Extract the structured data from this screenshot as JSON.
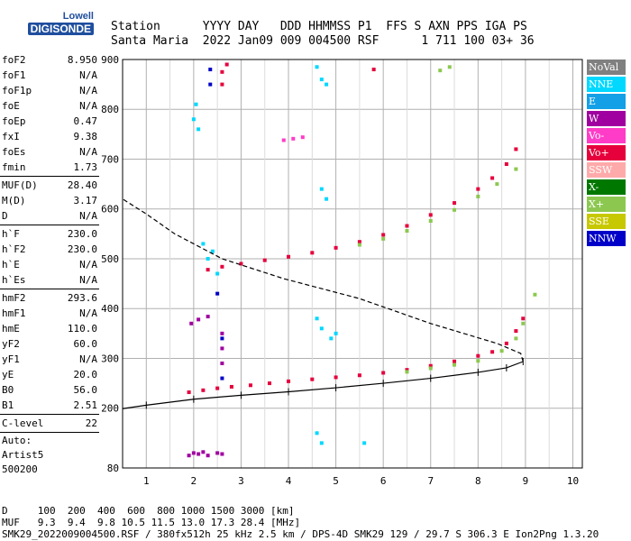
{
  "logo": {
    "line1": "Lowell",
    "line2": "DIGISONDE"
  },
  "header": {
    "line1": "Station      YYYY DAY   DDD HHMMSS P1  FFS S AXN PPS IGA PS",
    "line2": "Santa Maria  2022 Jan09 009 004500 RSF      1 711 100 03+ 36"
  },
  "params": [
    {
      "name": "foF2",
      "value": "8.950"
    },
    {
      "name": "foF1",
      "value": "N/A"
    },
    {
      "name": "foF1p",
      "value": "N/A"
    },
    {
      "name": "foE",
      "value": "N/A"
    },
    {
      "name": "foEp",
      "value": "0.47"
    },
    {
      "name": "fxI",
      "value": "9.38"
    },
    {
      "name": "foEs",
      "value": "N/A"
    },
    {
      "name": "fmin",
      "value": "1.73"
    },
    {
      "sep": true
    },
    {
      "name": "MUF(D)",
      "value": "28.40"
    },
    {
      "name": "M(D)",
      "value": "3.17"
    },
    {
      "name": "D",
      "value": "N/A"
    },
    {
      "sep": true
    },
    {
      "name": "h`F",
      "value": "230.0"
    },
    {
      "name": "h`F2",
      "value": "230.0"
    },
    {
      "name": "h`E",
      "value": "N/A"
    },
    {
      "name": "h`Es",
      "value": "N/A"
    },
    {
      "sep": true
    },
    {
      "name": "hmF2",
      "value": "293.6"
    },
    {
      "name": "hmF1",
      "value": "N/A"
    },
    {
      "name": "hmE",
      "value": "110.0"
    },
    {
      "name": "yF2",
      "value": "60.0"
    },
    {
      "name": "yF1",
      "value": "N/A"
    },
    {
      "name": "yE",
      "value": "20.0"
    },
    {
      "name": "B0",
      "value": "56.0"
    },
    {
      "name": "B1",
      "value": "2.51"
    },
    {
      "sep": true
    },
    {
      "name": "C-level",
      "value": "22"
    },
    {
      "sep": true
    }
  ],
  "auto_text": [
    "Auto:",
    "Artist5",
    "500200"
  ],
  "legend": [
    {
      "label": "NoVal",
      "color": "#808080"
    },
    {
      "label": "NNE",
      "color": "#00d8ff"
    },
    {
      "label": "E",
      "color": "#14a0e6"
    },
    {
      "label": "W",
      "color": "#a000a0"
    },
    {
      "label": "Vo-",
      "color": "#ff3cc8"
    },
    {
      "label": "Vo+",
      "color": "#e6003c"
    },
    {
      "label": "SSW",
      "color": "#ffaaaa"
    },
    {
      "label": "X-",
      "color": "#007800"
    },
    {
      "label": "X+",
      "color": "#8cc850"
    },
    {
      "label": "SSE",
      "color": "#c8c800"
    },
    {
      "label": "NNW",
      "color": "#0000c8"
    }
  ],
  "footer": {
    "line1": "D     100  200  400  600  800 1000 1500 3000 [km]",
    "line2": "MUF   9.3  9.4  9.8 10.5 11.5 13.0 17.3 28.4 [MHz]",
    "line3": "SMK29_2022009004500.RSF / 380fx512h 25 kHz 2.5 km / DPS-4D SMK29 129 / 29.7 S 306.3 E Ion2Png 1.3.20"
  },
  "chart_data": {
    "type": "scatter",
    "x_ticks": [
      "1",
      "2",
      "3",
      "4",
      "5",
      "6",
      "7",
      "8",
      "9",
      "10"
    ],
    "y_ticks": [
      "80",
      "200",
      "300",
      "400",
      "500",
      "600",
      "700",
      "800",
      "900"
    ],
    "xlim": [
      0.5,
      10.2
    ],
    "ylim": [
      80,
      900
    ],
    "grid": true,
    "series": [
      {
        "name": "Vo+",
        "color_key": "Vo+",
        "points": [
          [
            1.9,
            232
          ],
          [
            2.2,
            236
          ],
          [
            2.5,
            240
          ],
          [
            2.8,
            243
          ],
          [
            3.2,
            246
          ],
          [
            3.6,
            250
          ],
          [
            4.0,
            254
          ],
          [
            4.5,
            258
          ],
          [
            5.0,
            262
          ],
          [
            5.5,
            266
          ],
          [
            6.0,
            271
          ],
          [
            6.5,
            277
          ],
          [
            7.0,
            285
          ],
          [
            7.5,
            294
          ],
          [
            8.0,
            305
          ],
          [
            8.3,
            313
          ],
          [
            8.6,
            330
          ],
          [
            8.8,
            355
          ],
          [
            8.95,
            380
          ]
        ]
      },
      {
        "name": "X+",
        "color_key": "X+",
        "points": [
          [
            6.5,
            273
          ],
          [
            7.0,
            280
          ],
          [
            7.5,
            287
          ],
          [
            8.0,
            295
          ],
          [
            8.5,
            315
          ],
          [
            8.8,
            340
          ],
          [
            8.95,
            370
          ]
        ]
      },
      {
        "name": "Vo+",
        "color_key": "Vo+",
        "points": [
          [
            2.3,
            478
          ],
          [
            2.6,
            484
          ],
          [
            3.0,
            490
          ],
          [
            3.5,
            497
          ],
          [
            4.0,
            504
          ],
          [
            4.5,
            512
          ],
          [
            5.0,
            522
          ],
          [
            5.5,
            534
          ],
          [
            6.0,
            548
          ],
          [
            6.5,
            566
          ],
          [
            7.0,
            588
          ],
          [
            7.5,
            612
          ],
          [
            8.0,
            640
          ],
          [
            8.3,
            662
          ],
          [
            8.6,
            690
          ],
          [
            8.8,
            720
          ]
        ]
      },
      {
        "name": "X+",
        "color_key": "X+",
        "points": [
          [
            5.5,
            528
          ],
          [
            6.0,
            540
          ],
          [
            6.5,
            556
          ],
          [
            7.0,
            576
          ],
          [
            7.5,
            598
          ],
          [
            8.0,
            625
          ],
          [
            8.4,
            650
          ],
          [
            8.8,
            680
          ]
        ]
      },
      {
        "name": "Vo-",
        "color_key": "Vo-",
        "points": [
          [
            3.9,
            738
          ],
          [
            4.1,
            741
          ],
          [
            4.3,
            744
          ]
        ]
      },
      {
        "name": "X+",
        "color_key": "X+",
        "points": [
          [
            7.2,
            878
          ],
          [
            7.4,
            885
          ],
          [
            9.2,
            428
          ]
        ]
      },
      {
        "name": "W",
        "color_key": "W",
        "points": [
          [
            1.95,
            370
          ],
          [
            2.1,
            378
          ],
          [
            2.3,
            384
          ],
          [
            2.6,
            350
          ],
          [
            2.6,
            320
          ],
          [
            2.6,
            290
          ]
        ]
      },
      {
        "name": "NNE",
        "color_key": "NNE",
        "points": [
          [
            2.0,
            780
          ],
          [
            2.05,
            810
          ],
          [
            2.1,
            760
          ],
          [
            2.2,
            530
          ],
          [
            2.3,
            500
          ],
          [
            2.4,
            515
          ],
          [
            2.5,
            470
          ],
          [
            4.6,
            885
          ],
          [
            4.7,
            860
          ],
          [
            4.8,
            850
          ],
          [
            4.7,
            640
          ],
          [
            4.8,
            620
          ],
          [
            4.6,
            380
          ],
          [
            4.7,
            360
          ],
          [
            4.9,
            340
          ],
          [
            5.0,
            350
          ],
          [
            4.6,
            150
          ],
          [
            4.7,
            130
          ],
          [
            5.6,
            130
          ]
        ]
      },
      {
        "name": "W",
        "color_key": "W",
        "points": [
          [
            1.9,
            105
          ],
          [
            2.0,
            110
          ],
          [
            2.1,
            108
          ],
          [
            2.2,
            112
          ],
          [
            2.3,
            105
          ],
          [
            2.5,
            110
          ],
          [
            2.6,
            108
          ]
        ]
      },
      {
        "name": "NNW",
        "color_key": "NNW",
        "points": [
          [
            2.35,
            880
          ],
          [
            2.35,
            850
          ],
          [
            2.5,
            430
          ],
          [
            2.6,
            260
          ],
          [
            2.6,
            340
          ]
        ]
      },
      {
        "name": "Vo+",
        "color_key": "Vo+",
        "points": [
          [
            2.6,
            875
          ],
          [
            2.6,
            850
          ],
          [
            2.7,
            890
          ],
          [
            5.8,
            880
          ]
        ]
      },
      {
        "name": "model_profile",
        "color_key": "black",
        "points": [
          [
            0.5,
            199
          ],
          [
            1.0,
            206
          ],
          [
            2.0,
            218
          ],
          [
            3.0,
            226
          ],
          [
            4.0,
            233
          ],
          [
            5.0,
            241
          ],
          [
            6.0,
            250
          ],
          [
            7.0,
            260
          ],
          [
            8.0,
            272
          ],
          [
            8.6,
            281
          ],
          [
            8.95,
            293.6
          ],
          [
            8.9,
            310
          ],
          [
            8.4,
            330
          ],
          [
            7.0,
            370
          ],
          [
            5.5,
            420
          ],
          [
            3.9,
            460
          ],
          [
            2.6,
            500
          ],
          [
            1.6,
            550
          ],
          [
            1.0,
            590
          ],
          [
            0.5,
            620
          ]
        ]
      }
    ]
  }
}
